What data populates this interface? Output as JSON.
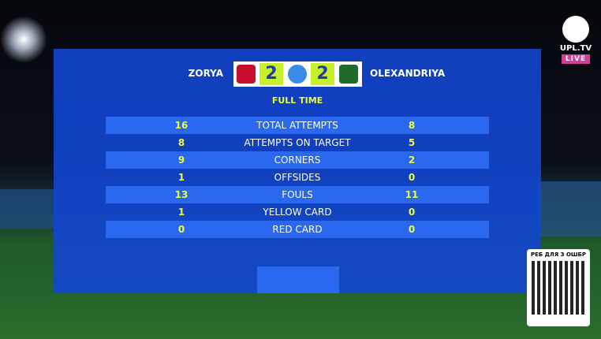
{
  "header": {
    "home_team": "ZORYA",
    "home_score": 2,
    "away_score": 2,
    "away_team": "OLEXANDRIYA",
    "status": "FULL TIME"
  },
  "stats": {
    "rows": [
      [
        16,
        "TOTAL ATTEMPTS",
        8
      ],
      [
        8,
        "ATTEMPTS ON TARGET",
        5
      ],
      [
        9,
        "CORNERS",
        2
      ],
      [
        1,
        "OFFSIDES",
        0
      ],
      [
        13,
        "FOULS",
        11
      ],
      [
        1,
        "YELLOW CARD",
        0
      ],
      [
        0,
        "RED CARD",
        0
      ]
    ]
  },
  "broadcaster": {
    "name": "UPL.TV",
    "badge": "LIVE"
  },
  "qr": {
    "caption": "РЕБ ДЛЯ З ОШБР"
  }
}
